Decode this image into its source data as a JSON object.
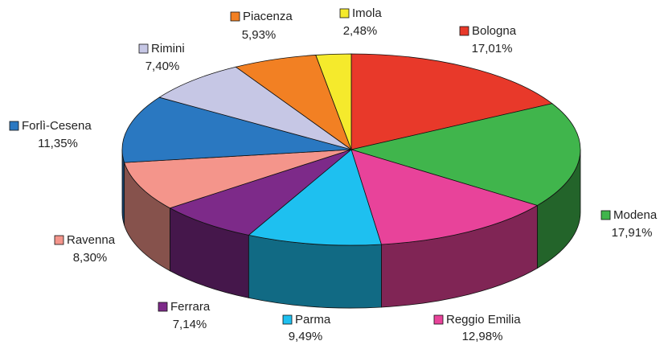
{
  "chart_data": {
    "type": "pie",
    "categories": [
      "Bologna",
      "Modena",
      "Reggio Emilia",
      "Parma",
      "Ferrara",
      "Ravenna",
      "Forlì-Cesena",
      "Rimini",
      "Piacenza",
      "Imola"
    ],
    "values": [
      17.01,
      17.91,
      12.98,
      9.49,
      7.14,
      8.3,
      11.35,
      7.4,
      5.93,
      2.48
    ],
    "value_labels": [
      "17,01%",
      "17,91%",
      "12,98%",
      "9,49%",
      "7,14%",
      "8,30%",
      "11,35%",
      "7,40%",
      "5,93%",
      "2,48%"
    ],
    "colors": [
      "#e8392a",
      "#40b54c",
      "#e8439a",
      "#1ec0f0",
      "#7d2a89",
      "#f4958b",
      "#2a78c1",
      "#c6c7e5",
      "#f28023",
      "#f5ea2c"
    ]
  }
}
